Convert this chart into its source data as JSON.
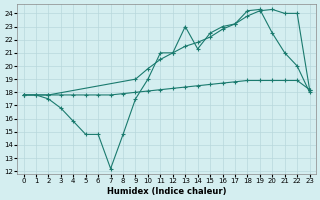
{
  "xlabel": "Humidex (Indice chaleur)",
  "bg_color": "#d4eef0",
  "grid_color": "#b8d8dc",
  "line_color": "#1a7a6e",
  "xlim": [
    -0.5,
    23.5
  ],
  "ylim": [
    11.8,
    24.7
  ],
  "yticks": [
    12,
    13,
    14,
    15,
    16,
    17,
    18,
    19,
    20,
    21,
    22,
    23,
    24
  ],
  "xticks": [
    0,
    1,
    2,
    3,
    4,
    5,
    6,
    7,
    8,
    9,
    10,
    11,
    12,
    13,
    14,
    15,
    16,
    17,
    18,
    19,
    20,
    21,
    22,
    23
  ],
  "line1_x": [
    0,
    1,
    2,
    3,
    4,
    5,
    6,
    7,
    8,
    9,
    10,
    11,
    12,
    13,
    14,
    15,
    16,
    17,
    18,
    19,
    20,
    21,
    22,
    23
  ],
  "line1_y": [
    17.8,
    17.8,
    17.8,
    17.8,
    17.8,
    17.8,
    17.8,
    17.8,
    17.9,
    18.0,
    18.1,
    18.2,
    18.3,
    18.4,
    18.5,
    18.6,
    18.7,
    18.8,
    18.9,
    18.9,
    18.9,
    18.9,
    18.9,
    18.2
  ],
  "line2_x": [
    0,
    2,
    9,
    10,
    11,
    12,
    13,
    14,
    15,
    16,
    17,
    18,
    19,
    20,
    21,
    22,
    23
  ],
  "line2_y": [
    17.8,
    17.8,
    19.0,
    19.8,
    20.5,
    21.0,
    21.5,
    21.8,
    22.2,
    22.8,
    23.2,
    23.8,
    24.2,
    24.3,
    24.0,
    24.0,
    18.2
  ],
  "line3_x": [
    0,
    1,
    2,
    3,
    4,
    5,
    6,
    7,
    8,
    9,
    10,
    11,
    12,
    13,
    14,
    15,
    16,
    17,
    18,
    19,
    20,
    21,
    22,
    23
  ],
  "line3_y": [
    17.8,
    17.8,
    17.5,
    16.8,
    15.8,
    14.8,
    14.8,
    12.2,
    14.8,
    17.5,
    19.0,
    21.0,
    21.0,
    23.0,
    21.3,
    22.5,
    23.0,
    23.2,
    24.2,
    24.3,
    22.5,
    21.0,
    20.0,
    18.0
  ]
}
